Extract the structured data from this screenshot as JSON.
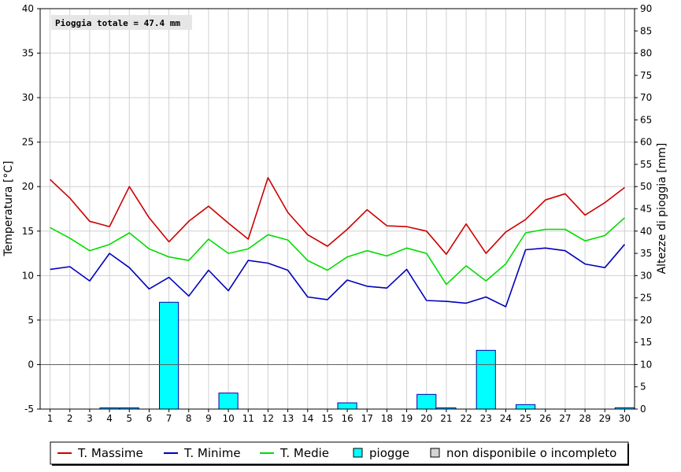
{
  "chart_data": {
    "type": "line",
    "annotation": "Pioggia totale = 47.4 mm",
    "x": [
      1,
      2,
      3,
      4,
      5,
      6,
      7,
      8,
      9,
      10,
      11,
      12,
      13,
      14,
      15,
      16,
      17,
      18,
      19,
      20,
      21,
      22,
      23,
      24,
      25,
      26,
      27,
      28,
      29,
      30
    ],
    "x_tick_labels": [
      "1",
      "2",
      "3",
      "4",
      "5",
      "6",
      "7",
      "8",
      "9",
      "10",
      "11",
      "12",
      "13",
      "14",
      "15",
      "16",
      "17",
      "18",
      "19",
      "20",
      "21",
      "22",
      "23",
      "24",
      "25",
      "26",
      "27",
      "28",
      "29",
      "30"
    ],
    "y_left": {
      "label": "Temperatura [°C]",
      "range": [
        -5,
        40
      ],
      "ticks": [
        -5,
        0,
        5,
        10,
        15,
        20,
        25,
        30,
        35,
        40
      ],
      "tick_labels": [
        "-5",
        "0",
        "5",
        "10",
        "15",
        "20",
        "25",
        "30",
        "35",
        "40"
      ]
    },
    "y_right": {
      "label": "Altezze di pioggia [mm]",
      "range": [
        0,
        90
      ],
      "ticks": [
        0,
        5,
        10,
        15,
        20,
        25,
        30,
        35,
        40,
        45,
        50,
        55,
        60,
        65,
        70,
        75,
        80,
        85,
        90
      ],
      "tick_labels": [
        "0",
        "5",
        "10",
        "15",
        "20",
        "25",
        "30",
        "35",
        "40",
        "45",
        "50",
        "55",
        "60",
        "65",
        "70",
        "75",
        "80",
        "85",
        "90"
      ]
    },
    "grid": true,
    "legend_position": "bottom",
    "series": [
      {
        "name": "T. Massime",
        "color": "#cc0000",
        "axis": "left",
        "kind": "line",
        "values": [
          20.8,
          18.7,
          16.1,
          15.5,
          20.0,
          16.5,
          13.8,
          16.1,
          17.8,
          15.9,
          14.1,
          21.0,
          17.1,
          14.6,
          13.3,
          15.2,
          17.4,
          15.6,
          15.5,
          15.0,
          12.4,
          15.8,
          12.5,
          14.9,
          16.3,
          18.5,
          19.2,
          16.8,
          18.2,
          19.9
        ]
      },
      {
        "name": "T. Minime",
        "color": "#0000bb",
        "axis": "left",
        "kind": "line",
        "values": [
          10.7,
          11.0,
          9.4,
          12.5,
          10.9,
          8.5,
          9.8,
          7.7,
          10.6,
          8.3,
          11.7,
          11.4,
          10.6,
          7.6,
          7.3,
          9.5,
          8.8,
          8.6,
          10.7,
          7.2,
          7.1,
          6.9,
          7.6,
          6.5,
          12.9,
          13.1,
          12.8,
          11.3,
          10.9,
          13.5
        ]
      },
      {
        "name": "T. Medie",
        "color": "#00dd00",
        "axis": "left",
        "kind": "line",
        "values": [
          15.4,
          14.2,
          12.8,
          13.5,
          14.8,
          13.0,
          12.1,
          11.7,
          14.1,
          12.5,
          13.0,
          14.6,
          14.0,
          11.7,
          10.6,
          12.1,
          12.8,
          12.2,
          13.1,
          12.5,
          9.0,
          11.1,
          9.4,
          11.3,
          14.8,
          15.2,
          15.2,
          13.9,
          14.5,
          16.5
        ]
      },
      {
        "name": "piogge",
        "color": "#00ffff",
        "edge_color": "#0000aa",
        "axis": "right",
        "kind": "bar",
        "values": [
          0,
          0,
          0,
          0.2,
          0.2,
          0,
          24.0,
          0,
          0,
          3.6,
          0,
          0,
          0,
          0,
          0,
          1.4,
          0,
          0,
          0,
          3.3,
          0.2,
          0,
          13.2,
          0,
          1.0,
          0,
          0,
          0,
          0,
          0.3
        ]
      }
    ],
    "legend": [
      {
        "label": "T. Massime",
        "kind": "line",
        "color": "#cc0000"
      },
      {
        "label": "T. Minime",
        "kind": "line",
        "color": "#0000bb"
      },
      {
        "label": "T. Medie",
        "kind": "line",
        "color": "#00dd00"
      },
      {
        "label": "piogge",
        "kind": "box",
        "color": "#00ffff"
      },
      {
        "label": "non disponibile o incompleto",
        "kind": "box",
        "color": "#d4d4d4"
      }
    ]
  }
}
